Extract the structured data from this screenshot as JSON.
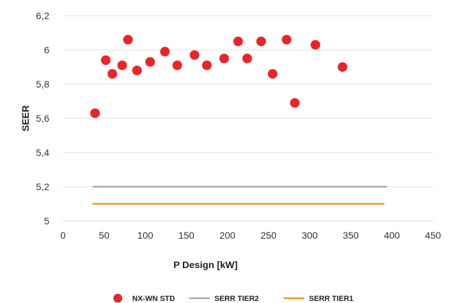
{
  "chart_data": {
    "type": "scatter",
    "xlabel": "P Design [kW]",
    "ylabel": "SEER",
    "xlim": [
      0,
      450
    ],
    "ylim": [
      5,
      6.2
    ],
    "x_ticks": [
      "0",
      "50",
      "100",
      "150",
      "200",
      "250",
      "300",
      "350",
      "400",
      "450"
    ],
    "x_tick_values": [
      0,
      50,
      100,
      150,
      200,
      250,
      300,
      350,
      400,
      450
    ],
    "y_ticks": [
      "5",
      "5,2",
      "5,4",
      "5,6",
      "5,8",
      "6",
      "6,2"
    ],
    "y_tick_values": [
      5,
      5.2,
      5.4,
      5.6,
      5.8,
      6,
      6.2
    ],
    "legend_position": "bottom",
    "series": [
      {
        "name": "NX-WN STD",
        "kind": "scatter",
        "color": "#e8262a",
        "points": [
          {
            "x": 39,
            "y": 5.63
          },
          {
            "x": 52,
            "y": 5.94
          },
          {
            "x": 60,
            "y": 5.86
          },
          {
            "x": 72,
            "y": 5.91
          },
          {
            "x": 79,
            "y": 6.06
          },
          {
            "x": 90,
            "y": 5.88
          },
          {
            "x": 106,
            "y": 5.93
          },
          {
            "x": 124,
            "y": 5.99
          },
          {
            "x": 139,
            "y": 5.91
          },
          {
            "x": 160,
            "y": 5.97
          },
          {
            "x": 175,
            "y": 5.91
          },
          {
            "x": 196,
            "y": 5.95
          },
          {
            "x": 213,
            "y": 6.05
          },
          {
            "x": 224,
            "y": 5.95
          },
          {
            "x": 241,
            "y": 6.05
          },
          {
            "x": 255,
            "y": 5.86
          },
          {
            "x": 272,
            "y": 6.06
          },
          {
            "x": 282,
            "y": 5.69
          },
          {
            "x": 307,
            "y": 6.03
          },
          {
            "x": 340,
            "y": 5.9
          }
        ]
      },
      {
        "name": "SERR TIER2",
        "kind": "line",
        "color": "#a8a8a8",
        "points": [
          {
            "x": 36,
            "y": 5.2
          },
          {
            "x": 394,
            "y": 5.2
          }
        ]
      },
      {
        "name": "SERR TIER1",
        "kind": "line",
        "color": "#f09a12",
        "points": [
          {
            "x": 36,
            "y": 5.1
          },
          {
            "x": 391,
            "y": 5.1
          }
        ]
      }
    ]
  }
}
